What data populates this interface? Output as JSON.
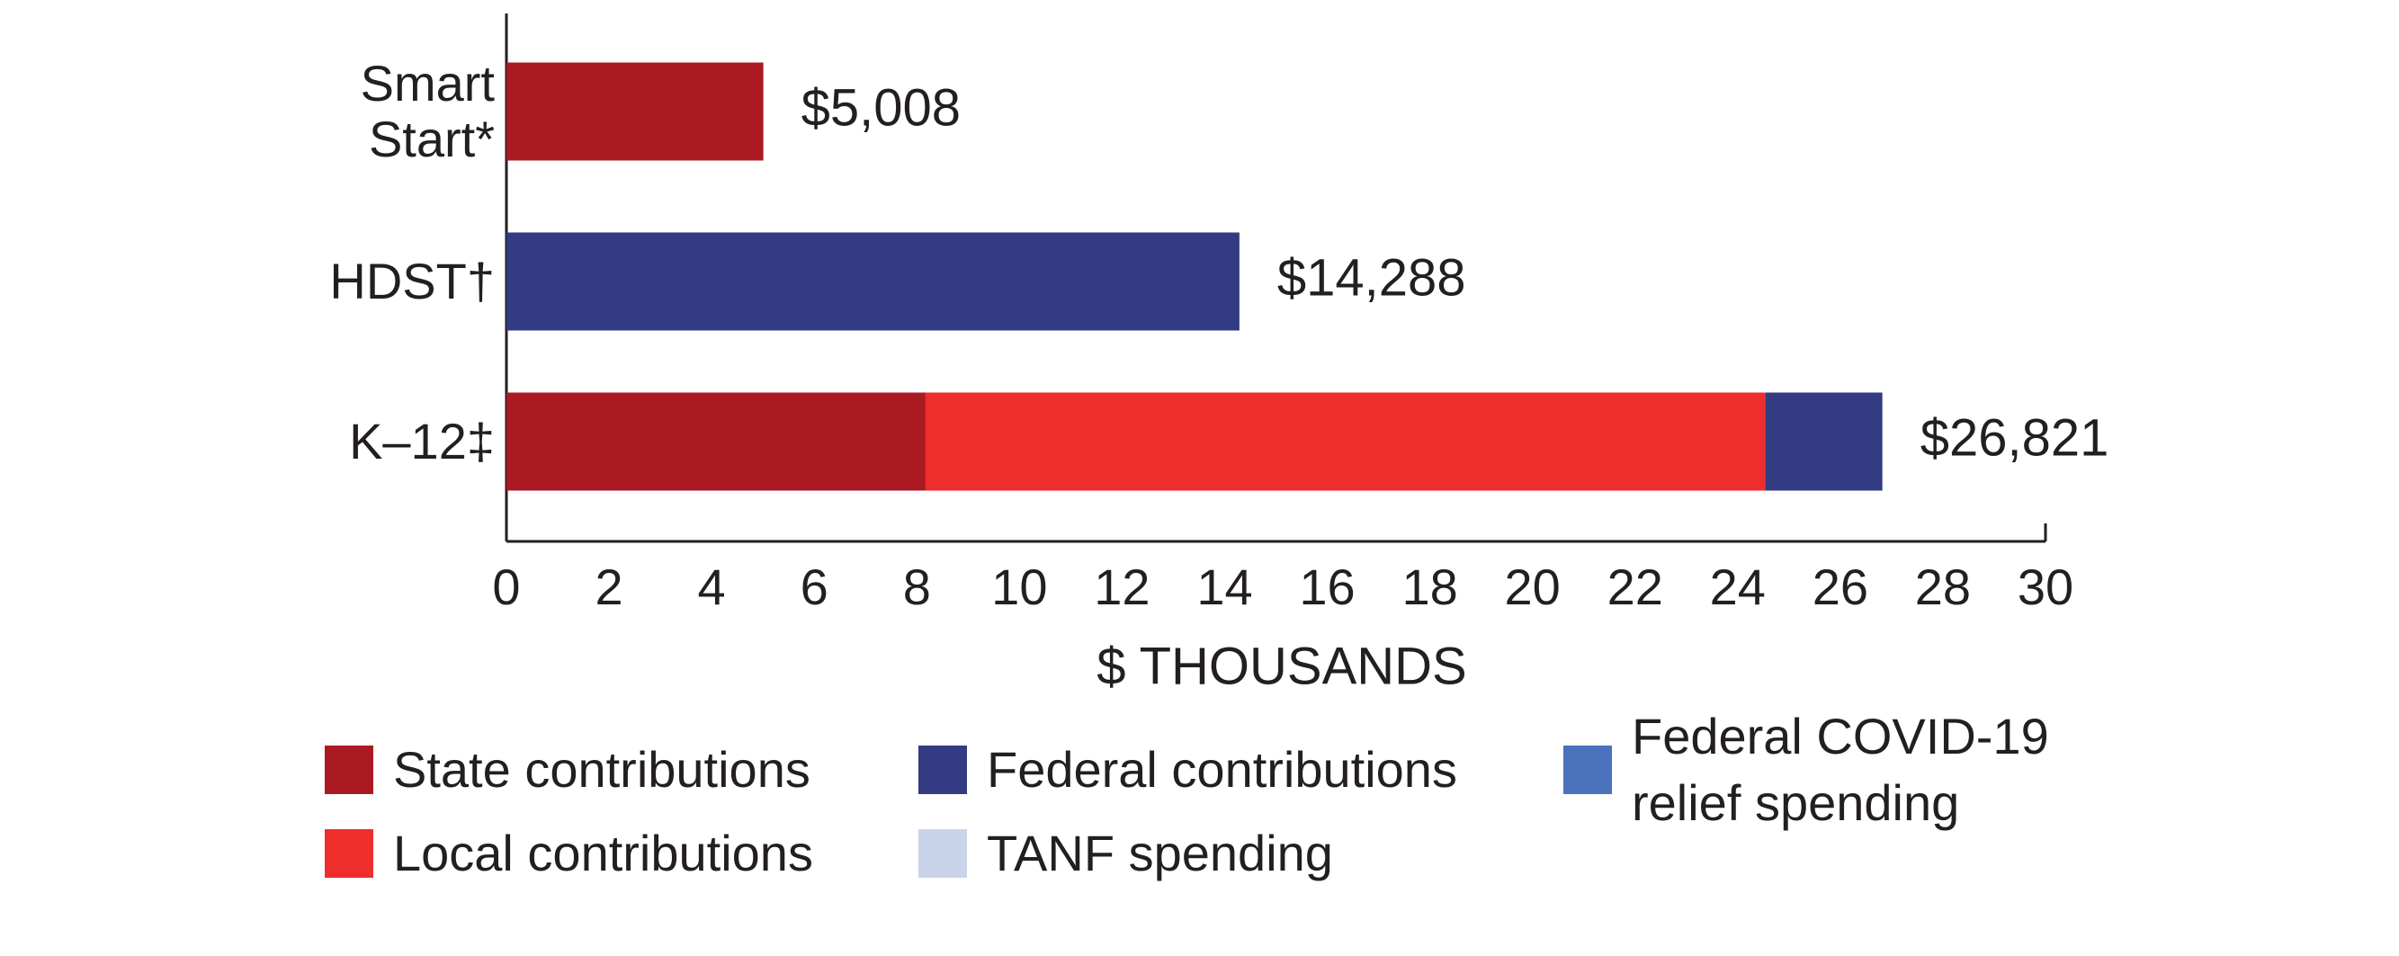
{
  "chart_data": {
    "type": "stacked-bar-horizontal",
    "categories": [
      "Smart Start*",
      "HDST†",
      "K–12‡"
    ],
    "series": [
      {
        "name": "State contributions",
        "color": "#ab1a22",
        "values": [
          5.008,
          null,
          8.17
        ]
      },
      {
        "name": "Local contributions",
        "color": "#ee2d2d",
        "values": [
          null,
          null,
          16.37
        ]
      },
      {
        "name": "Federal contributions",
        "color": "#333b82",
        "values": [
          null,
          14.288,
          2.28
        ]
      },
      {
        "name": "TANF spending",
        "color": "#c9d3ea",
        "values": [
          null,
          null,
          null
        ]
      },
      {
        "name": "Federal COVID-19 relief spending",
        "color": "#4a72bc",
        "values": [
          null,
          null,
          null
        ]
      }
    ],
    "totals": [
      5.008,
      14.288,
      26.821
    ],
    "value_labels": [
      "$5,008",
      "$14,288",
      "$26,821"
    ],
    "xlabel": "$ THOUSANDS",
    "xlim": [
      0,
      30
    ],
    "xticks": [
      0,
      2,
      4,
      6,
      8,
      10,
      12,
      14,
      16,
      18,
      20,
      22,
      24,
      26,
      28,
      30
    ],
    "grid": false,
    "legend": "bottom"
  }
}
